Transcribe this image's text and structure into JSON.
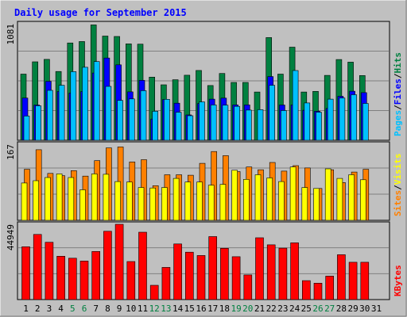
{
  "title": "Daily usage for September 2015",
  "colors": {
    "background": "#c0c0c0",
    "panel": "#ffffff",
    "hits": "#008040",
    "files": "#0000ff",
    "pages": "#00c0ff",
    "visits": "#ffff00",
    "sites": "#ff8000",
    "kbytes": "#ff0000",
    "title_text": "#0000ff",
    "weekend_label": "#008040"
  },
  "legend": {
    "pages": "Pages",
    "files": "Files",
    "hits": "Hits",
    "sites": "Sites",
    "visits": "Visits",
    "kbytes": "KBytes",
    "sep": "/"
  },
  "chart_data": {
    "type": "bar",
    "title": "Daily usage for September 2015",
    "categories": [
      "1",
      "2",
      "3",
      "4",
      "5",
      "6",
      "7",
      "8",
      "9",
      "10",
      "11",
      "12",
      "13",
      "14",
      "15",
      "16",
      "17",
      "18",
      "19",
      "20",
      "21",
      "22",
      "23",
      "24",
      "25",
      "26",
      "27",
      "28",
      "29",
      "30",
      "31"
    ],
    "weekend_days": [
      "5",
      "6",
      "12",
      "13",
      "19",
      "20",
      "26",
      "27"
    ],
    "panels": [
      {
        "name": "requests",
        "ymax_label": "1081",
        "ymax": 1081,
        "series": [
          {
            "name": "Hits",
            "values": [
              614,
              728,
              751,
              638,
              903,
              916,
              1071,
              967,
              963,
              895,
              892,
              586,
              515,
              562,
              604,
              648,
              508,
              620,
              537,
              537,
              448,
              953,
              614,
              864,
              448,
              454,
              602,
              749,
              725,
              601,
              0
            ]
          },
          {
            "name": "Files",
            "values": [
              392,
              327,
              547,
              453,
              438,
              452,
              624,
              763,
              700,
              449,
              556,
              197,
              378,
              344,
              235,
              341,
              382,
              391,
              328,
              328,
              0,
              591,
              327,
              328,
              279,
              269,
              295,
              408,
              455,
              442,
              0
            ]
          },
          {
            "name": "Pages",
            "values": [
              225,
              320,
              463,
              510,
              637,
              677,
              730,
              500,
              370,
              384,
              460,
              269,
              380,
              260,
              228,
              356,
              328,
              326,
              315,
              280,
              284,
              510,
              276,
              647,
              346,
              260,
              382,
              392,
              423,
              342,
              0
            ]
          }
        ]
      },
      {
        "name": "visitors",
        "ymax_label": "167",
        "ymax": 167,
        "series": [
          {
            "name": "Visits",
            "values": [
              82,
              87,
              94,
              102,
              94,
              67,
              102,
              101,
              85,
              84,
              72,
              71,
              72,
              92,
              84,
              84,
              77,
              79,
              110,
              90,
              100,
              93,
              85,
              117,
              72,
              70,
              113,
              92,
              100,
              89,
              0
            ]
          },
          {
            "name": "Sites",
            "values": [
              112,
              155,
              103,
              98,
              109,
              97,
              131,
              159,
              161,
              128,
              133,
              76,
              100,
              100,
              99,
              125,
              151,
              142,
              107,
              117,
              111,
              127,
              108,
              120,
              115,
              70,
              111,
              83,
              106,
              112,
              0
            ]
          }
        ]
      },
      {
        "name": "volume",
        "ymax_label": "44949",
        "ymax": 44949,
        "series": [
          {
            "name": "KBytes",
            "values": [
              31500,
              38900,
              34200,
              25900,
              24700,
              23000,
              28700,
              40800,
              44949,
              22700,
              40200,
              8500,
              19200,
              33200,
              28300,
              26300,
              37600,
              30600,
              25600,
              14700,
              36900,
              32700,
              30700,
              33900,
              11300,
              9800,
              14000,
              26800,
              22300,
              22300,
              0
            ]
          }
        ]
      }
    ]
  }
}
